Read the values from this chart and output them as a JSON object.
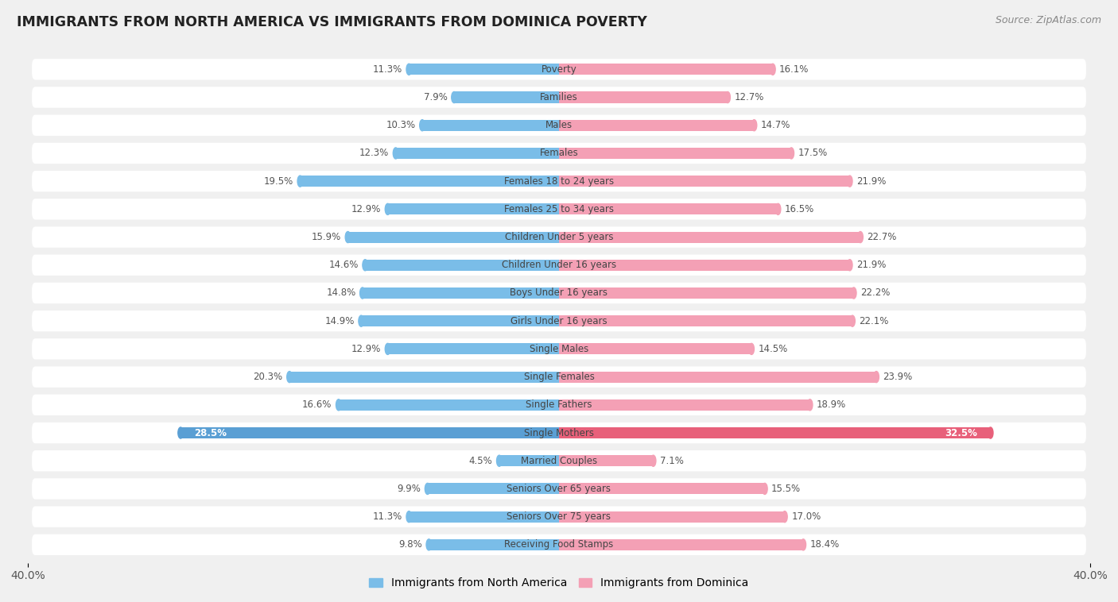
{
  "title": "IMMIGRANTS FROM NORTH AMERICA VS IMMIGRANTS FROM DOMINICA POVERTY",
  "source": "Source: ZipAtlas.com",
  "categories": [
    "Poverty",
    "Families",
    "Males",
    "Females",
    "Females 18 to 24 years",
    "Females 25 to 34 years",
    "Children Under 5 years",
    "Children Under 16 years",
    "Boys Under 16 years",
    "Girls Under 16 years",
    "Single Males",
    "Single Females",
    "Single Fathers",
    "Single Mothers",
    "Married Couples",
    "Seniors Over 65 years",
    "Seniors Over 75 years",
    "Receiving Food Stamps"
  ],
  "north_america": [
    11.3,
    7.9,
    10.3,
    12.3,
    19.5,
    12.9,
    15.9,
    14.6,
    14.8,
    14.9,
    12.9,
    20.3,
    16.6,
    28.5,
    4.5,
    9.9,
    11.3,
    9.8
  ],
  "dominica": [
    16.1,
    12.7,
    14.7,
    17.5,
    21.9,
    16.5,
    22.7,
    21.9,
    22.2,
    22.1,
    14.5,
    23.9,
    18.9,
    32.5,
    7.1,
    15.5,
    17.0,
    18.4
  ],
  "north_america_color": "#7abde8",
  "dominica_color": "#f4a0b5",
  "single_mothers_na_color": "#5a9fd4",
  "single_mothers_dom_color": "#e8607a",
  "background_color": "#f0f0f0",
  "bar_background": "#ffffff",
  "xlim": 40.0,
  "legend_label_na": "Immigrants from North America",
  "legend_label_dom": "Immigrants from Dominica"
}
